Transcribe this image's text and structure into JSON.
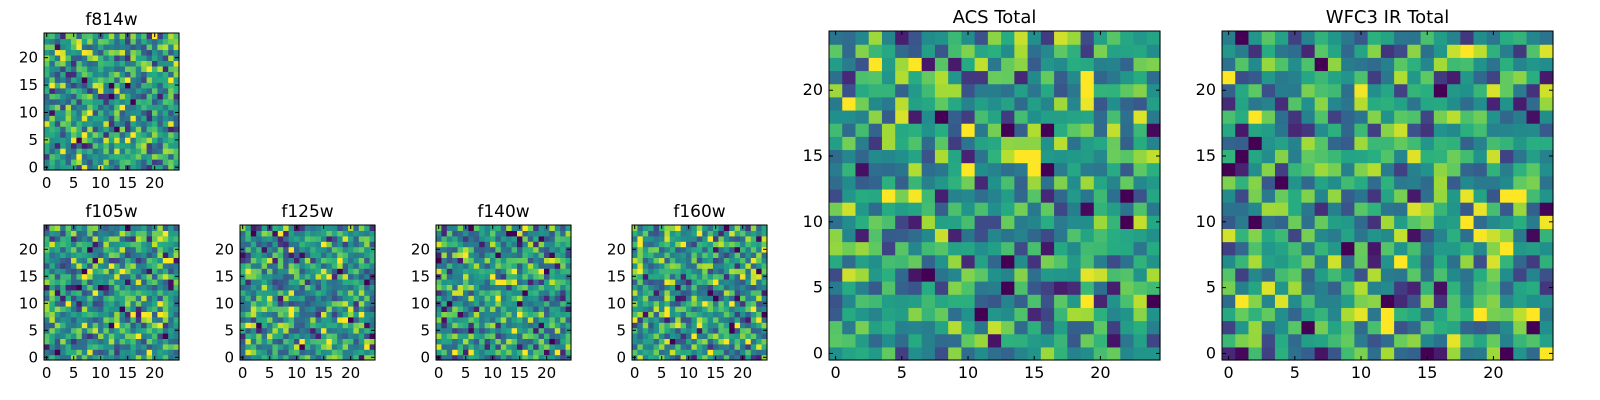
{
  "chart_data": [
    {
      "type": "heatmap",
      "id": "f814w",
      "title": "f814w",
      "size": 25,
      "xlim": [
        0,
        24
      ],
      "ylim": [
        0,
        24
      ],
      "xticks": [
        0,
        5,
        10,
        15,
        20
      ],
      "yticks": [
        0,
        5,
        10,
        15,
        20
      ],
      "colormap": "viridis",
      "cells_note_seed": 11,
      "dark_cells": [
        [
          6,
          5
        ],
        [
          13,
          7
        ],
        [
          12,
          15
        ],
        [
          15,
          15
        ],
        [
          16,
          12
        ],
        [
          12,
          13
        ]
      ]
    },
    {
      "type": "heatmap",
      "id": "f105w",
      "title": "f105w",
      "size": 25,
      "xlim": [
        0,
        24
      ],
      "ylim": [
        0,
        24
      ],
      "xticks": [
        0,
        5,
        10,
        15,
        20
      ],
      "yticks": [
        0,
        5,
        10,
        15,
        20
      ],
      "colormap": "viridis",
      "cells_note_seed": 23,
      "dark_cells": [
        [
          7,
          16
        ],
        [
          12,
          6
        ],
        [
          2,
          1
        ],
        [
          14,
          9
        ],
        [
          6,
          13
        ]
      ]
    },
    {
      "type": "heatmap",
      "id": "f125w",
      "title": "f125w",
      "size": 25,
      "xlim": [
        0,
        24
      ],
      "ylim": [
        0,
        24
      ],
      "xticks": [
        0,
        5,
        10,
        15,
        20
      ],
      "yticks": [
        0,
        5,
        10,
        15,
        20
      ],
      "colormap": "viridis",
      "cells_note_seed": 37,
      "dark_cells": [
        [
          18,
          16
        ],
        [
          23,
          14
        ],
        [
          3,
          6
        ],
        [
          11,
          2
        ],
        [
          20,
          7
        ]
      ]
    },
    {
      "type": "heatmap",
      "id": "f140w",
      "title": "f140w",
      "size": 25,
      "xlim": [
        0,
        24
      ],
      "ylim": [
        0,
        24
      ],
      "xticks": [
        0,
        5,
        10,
        15,
        20
      ],
      "yticks": [
        0,
        5,
        10,
        15,
        20
      ],
      "colormap": "viridis",
      "cells_note_seed": 53,
      "dark_cells": [
        [
          13,
          23
        ],
        [
          14,
          23
        ],
        [
          2,
          10
        ],
        [
          20,
          16
        ],
        [
          21,
          3
        ],
        [
          0,
          18
        ],
        [
          15,
          10
        ],
        [
          16,
          12
        ]
      ]
    },
    {
      "type": "heatmap",
      "id": "f160w",
      "title": "f160w",
      "size": 25,
      "xlim": [
        0,
        24
      ],
      "ylim": [
        0,
        24
      ],
      "xticks": [
        0,
        5,
        10,
        15,
        20
      ],
      "yticks": [
        0,
        5,
        10,
        15,
        20
      ],
      "colormap": "viridis",
      "cells_note_seed": 71,
      "dark_cells": [
        [
          14,
          12
        ],
        [
          15,
          11
        ],
        [
          18,
          5
        ],
        [
          7,
          3
        ],
        [
          23,
          16
        ],
        [
          24,
          8
        ],
        [
          19,
          20
        ]
      ]
    },
    {
      "type": "heatmap",
      "id": "acs-total",
      "title": "ACS Total",
      "size": 25,
      "xlim": [
        0,
        24
      ],
      "ylim": [
        0,
        24
      ],
      "xticks": [
        0,
        5,
        10,
        15,
        20
      ],
      "yticks": [
        0,
        5,
        10,
        15,
        20
      ],
      "colormap": "viridis",
      "cells_note_seed": 89,
      "dark_cells": [
        [
          13,
          17
        ],
        [
          16,
          17
        ],
        [
          16,
          14
        ],
        [
          22,
          12
        ],
        [
          22,
          10
        ],
        [
          13,
          7
        ],
        [
          7,
          6
        ],
        [
          13,
          5
        ],
        [
          24,
          4
        ]
      ]
    },
    {
      "type": "heatmap",
      "id": "wfc3-ir-total",
      "title": "WFC3 IR Total",
      "size": 25,
      "xlim": [
        0,
        24
      ],
      "ylim": [
        0,
        24
      ],
      "xticks": [
        0,
        5,
        10,
        15,
        20
      ],
      "yticks": [
        0,
        5,
        10,
        15,
        20
      ],
      "colormap": "viridis",
      "cells_note_seed": 97,
      "dark_cells": [
        [
          7,
          22
        ],
        [
          16,
          20
        ],
        [
          1,
          15
        ],
        [
          0,
          14
        ],
        [
          4,
          13
        ],
        [
          2,
          10
        ],
        [
          9,
          8
        ],
        [
          12,
          4
        ],
        [
          23,
          2
        ],
        [
          15,
          0
        ]
      ]
    }
  ]
}
